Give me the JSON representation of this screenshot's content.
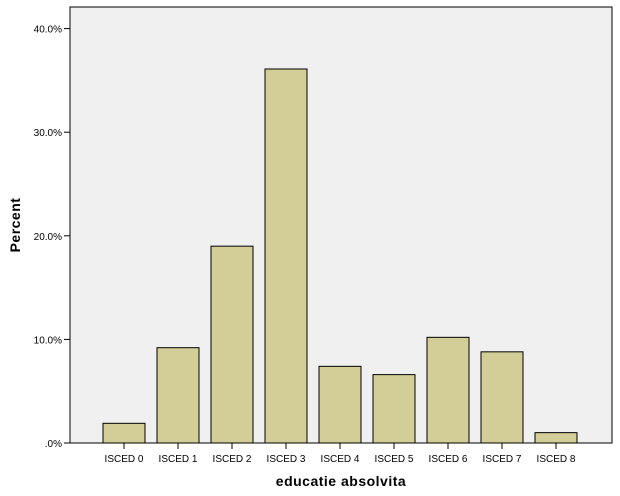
{
  "chart_data": {
    "type": "bar",
    "title": "",
    "xlabel": "educatie absolvita",
    "ylabel": "Percent",
    "categories": [
      "ISCED 0",
      "ISCED 1",
      "ISCED 2",
      "ISCED 3",
      "ISCED 4",
      "ISCED 5",
      "ISCED 6",
      "ISCED 7",
      "ISCED 8"
    ],
    "values": [
      1.9,
      9.2,
      19.0,
      36.1,
      7.4,
      6.6,
      10.2,
      8.8,
      1.0
    ],
    "ylim": [
      0,
      42
    ],
    "yticks": [
      0,
      10,
      20,
      30,
      40
    ],
    "ytick_labels": [
      ".0%",
      "10.0%",
      "20.0%",
      "30.0%",
      "40.0%"
    ],
    "grid": false,
    "legend": null,
    "colors": {
      "bar_fill": "#d3ce98",
      "bar_stroke": "#000000",
      "plot_background": "#f0f0f0",
      "page_background": "#ffffff"
    }
  }
}
